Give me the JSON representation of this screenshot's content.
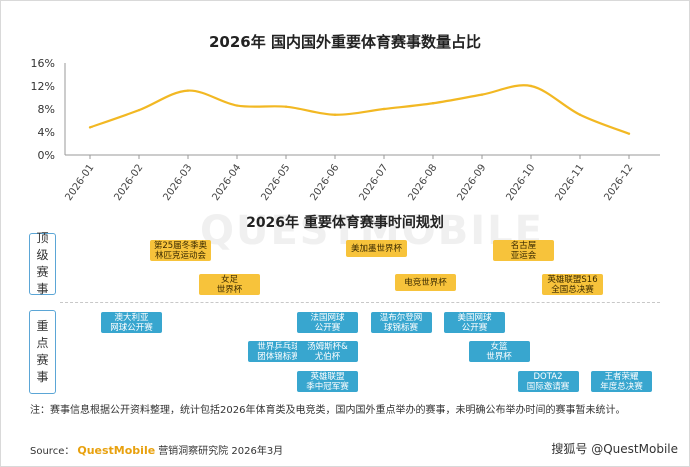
{
  "chart_data": [
    {
      "type": "line",
      "title": "2026年 国内国外重要体育赛事数量占比",
      "x": [
        "2026-01",
        "2026-02",
        "2026-03",
        "2026-04",
        "2026-05",
        "2026-06",
        "2026-07",
        "2026-08",
        "2026-09",
        "2026-10",
        "2026-11",
        "2026-12"
      ],
      "series": [
        {
          "values": [
            4.8,
            7.8,
            11.2,
            8.6,
            8.4,
            7.0,
            8.0,
            9.0,
            10.5,
            12.0,
            7.0,
            3.7
          ]
        }
      ],
      "ylim": [
        0,
        16
      ],
      "yticks": [
        "0%",
        "4%",
        "8%",
        "12%",
        "16%"
      ],
      "grid": false,
      "color": "#f2b823"
    },
    {
      "type": "table",
      "title": "2026年 重要体育赛事时间规划",
      "categories": [
        "顶级赛事",
        "重点赛事"
      ],
      "events": [
        {
          "cat": "顶级赛事",
          "label": "第25届冬季奥\n林匹克运动会",
          "start": 2,
          "end": 3
        },
        {
          "cat": "顶级赛事",
          "label": "美加墨世界杯",
          "start": 6,
          "end": 7
        },
        {
          "cat": "顶级赛事",
          "label": "名古屋\n亚运会",
          "start": 9,
          "end": 10
        },
        {
          "cat": "顶级赛事",
          "label": "女足\n世界杯",
          "start": 3,
          "end": 4
        },
        {
          "cat": "顶级赛事",
          "label": "电竞世界杯",
          "start": 7,
          "end": 8
        },
        {
          "cat": "顶级赛事",
          "label": "英雄联盟S16\n全国总决赛",
          "start": 10,
          "end": 11
        },
        {
          "cat": "重点赛事",
          "label": "澳大利亚\n网球公开赛",
          "start": 1,
          "end": 2
        },
        {
          "cat": "重点赛事",
          "label": "法国网球\n公开赛",
          "start": 5,
          "end": 6
        },
        {
          "cat": "重点赛事",
          "label": "温布尔登网\n球锦标赛",
          "start": 6.5,
          "end": 7.5
        },
        {
          "cat": "重点赛事",
          "label": "美国网球\n公开赛",
          "start": 8,
          "end": 9
        },
        {
          "cat": "重点赛事",
          "label": "世界乒乓球\n团体锦标赛",
          "start": 4,
          "end": 5
        },
        {
          "cat": "重点赛事",
          "label": "汤姆斯杯&\n尤伯杯",
          "start": 5,
          "end": 6
        },
        {
          "cat": "重点赛事",
          "label": "女篮\n世界杯",
          "start": 8.5,
          "end": 9.5
        },
        {
          "cat": "重点赛事",
          "label": "英雄联盟\n季中冠军赛",
          "start": 5,
          "end": 6
        },
        {
          "cat": "重点赛事",
          "label": "DOTA2\n国际邀请赛",
          "start": 9.5,
          "end": 10.5
        },
        {
          "cat": "重点赛事",
          "label": "王者荣耀\n年度总决赛",
          "start": 11,
          "end": 12
        }
      ]
    }
  ],
  "note": "注：赛事信息根据公开资料整理，统计包括2026年体育类及电竞类，国内国外重点举办的赛事，未明确公布举办时间的赛事暂未统计。",
  "source": {
    "label": "Source：",
    "brand": "QuestMobile",
    "rest": "营销洞察研究院 2026年3月"
  },
  "watermark": "QUESTMOBILE",
  "credit": "搜狐号 @QuestMobile"
}
